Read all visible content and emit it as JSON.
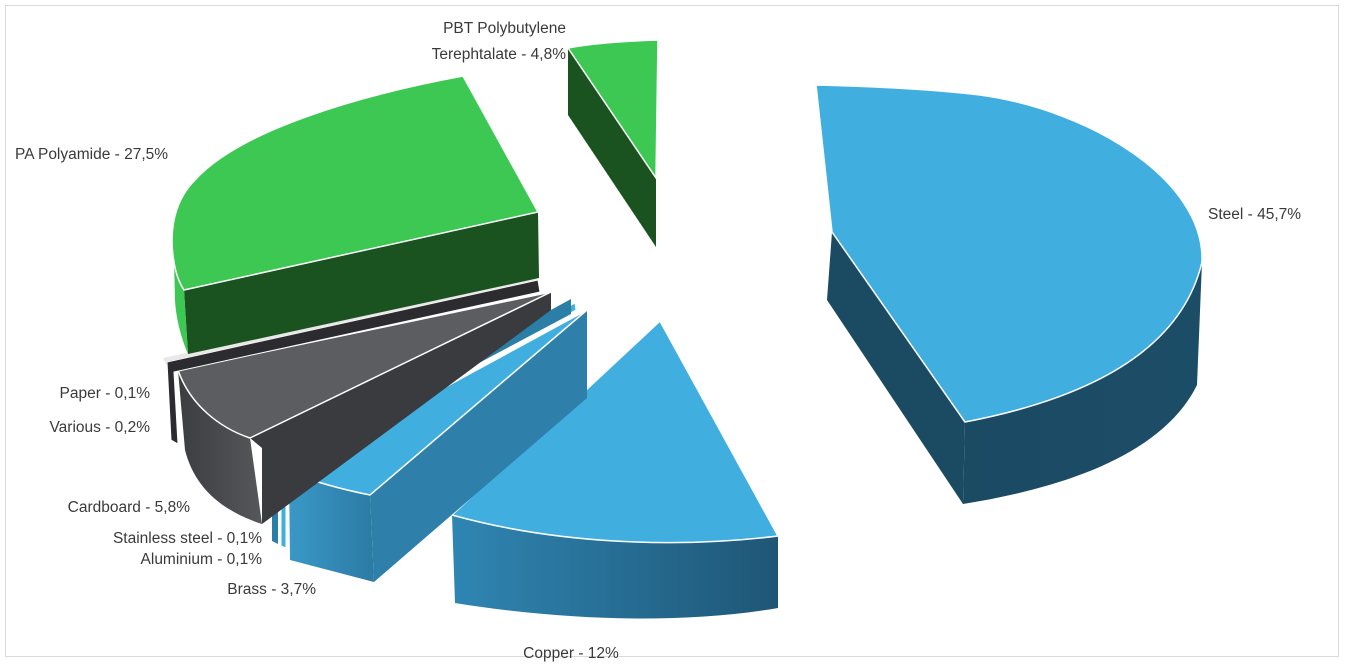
{
  "chart_data": {
    "type": "pie",
    "variant": "3d-exploded",
    "title": "",
    "slices": [
      {
        "key": "steel",
        "label": "Steel - 45,7%",
        "value": 45.7,
        "color": "#41aee0"
      },
      {
        "key": "copper",
        "label": "Copper - 12%",
        "value": 12,
        "color": "#41aee0"
      },
      {
        "key": "brass",
        "label": "Brass - 3,7%",
        "value": 3.7,
        "color": "#41aee0"
      },
      {
        "key": "aluminium",
        "label": "Aluminium - 0,1%",
        "value": 0.1,
        "color": "#41aee0"
      },
      {
        "key": "stainless",
        "label": "Stainless steel - 0,1%",
        "value": 0.1,
        "color": "#2b7fa6"
      },
      {
        "key": "cardboard",
        "label": "Cardboard - 5,8%",
        "value": 5.8,
        "color": "#5b5d61"
      },
      {
        "key": "various",
        "label": "Various - 0,2%",
        "value": 0.2,
        "color": "#2c2c30"
      },
      {
        "key": "paper",
        "label": "Paper - 0,1%",
        "value": 0.1,
        "color": "#e8e8e8"
      },
      {
        "key": "pa",
        "label": "PA Polyamide - 27,5%",
        "value": 27.5,
        "color": "#3cc853"
      },
      {
        "key": "pbt",
        "label": [
          "PBT Polybutylene",
          "Terephtalate - 4,8%"
        ],
        "value": 4.8,
        "color": "#3cc853"
      }
    ]
  }
}
